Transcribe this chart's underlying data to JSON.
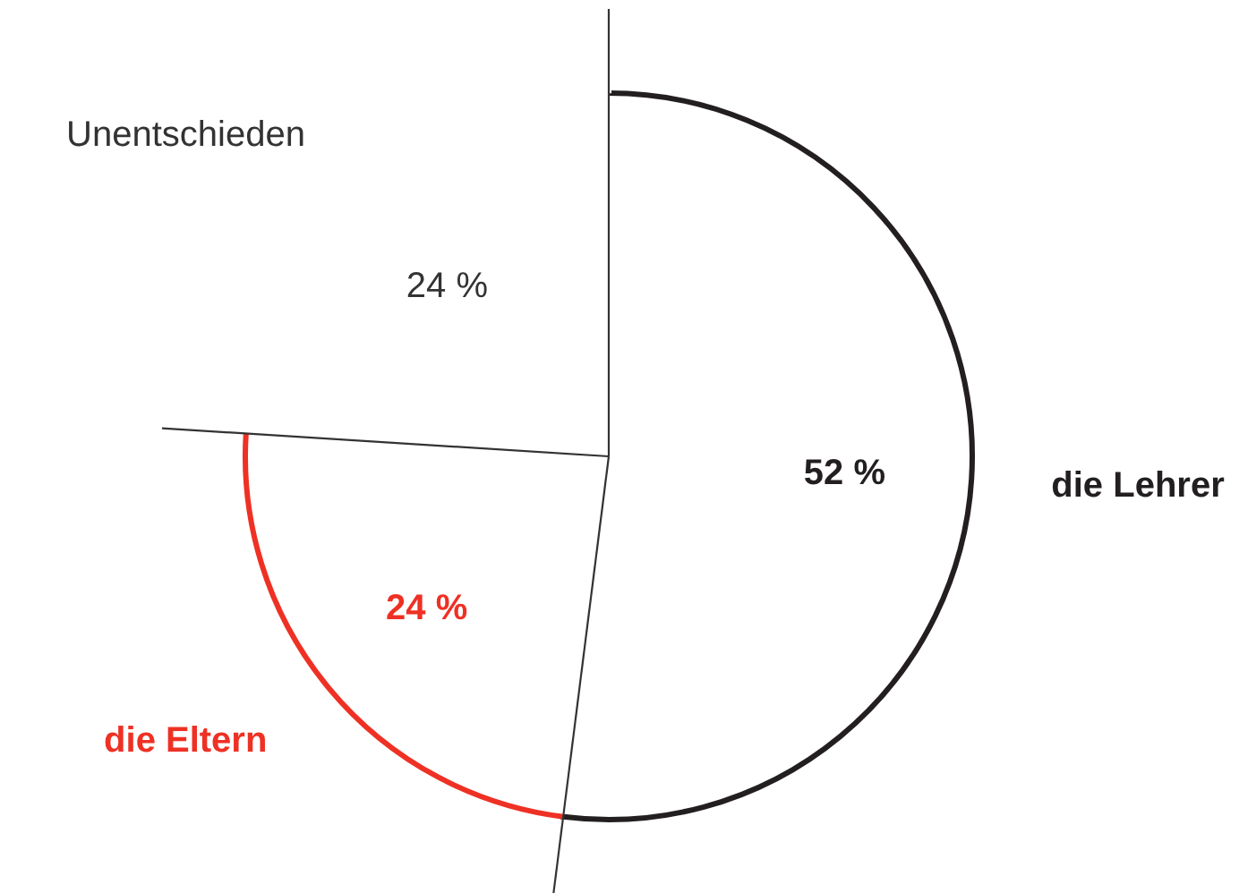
{
  "chart_data": {
    "type": "pie",
    "categories": [
      "die Lehrer",
      "die Eltern",
      "Unentschieden"
    ],
    "values": [
      52,
      24,
      24
    ],
    "colors": [
      "#231f20",
      "#ee3124",
      "#ffffff"
    ],
    "value_labels": [
      "52 %",
      "24 %",
      "24 %"
    ]
  }
}
